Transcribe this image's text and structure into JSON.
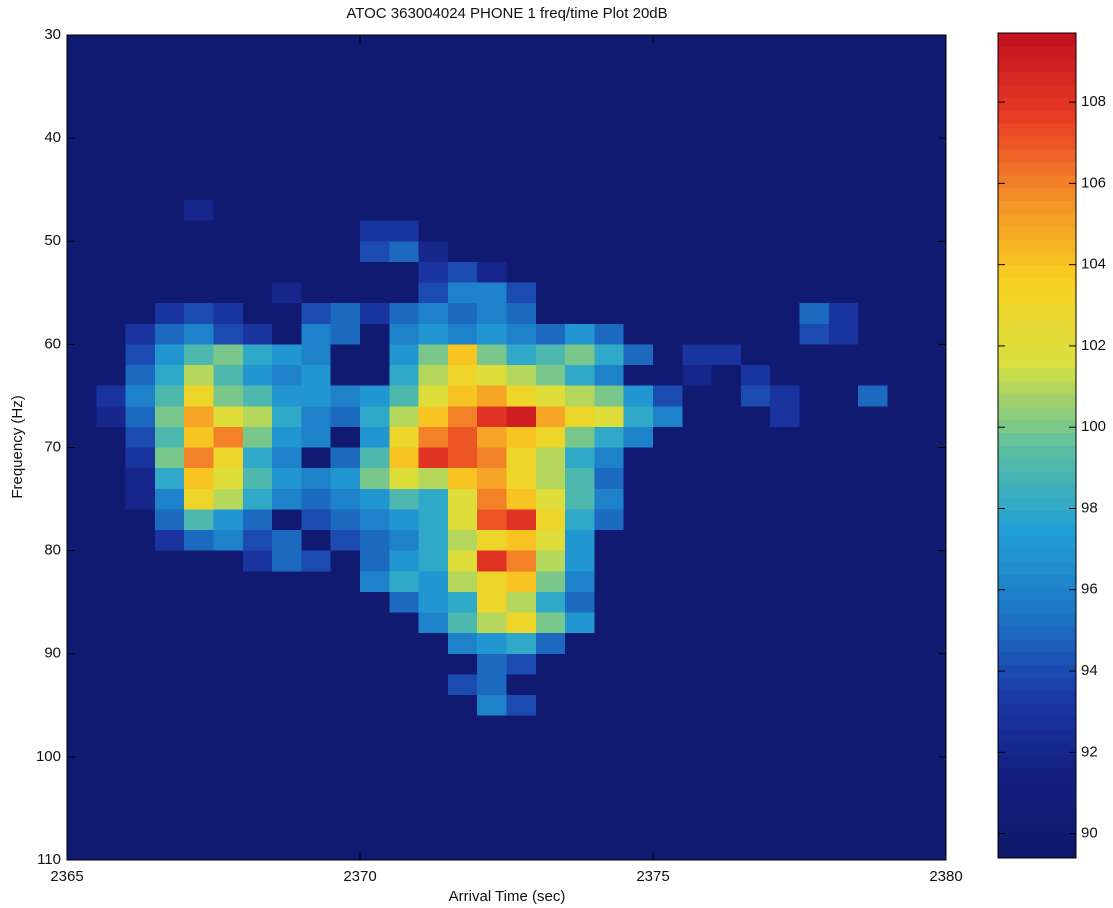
{
  "chart_data": {
    "type": "heatmap",
    "title": "ATOC 363004024  PHONE 1 freq/time Plot 20dB",
    "xlabel": "Arrival Time (sec)",
    "ylabel": "Frequency (Hz)",
    "xlim": [
      2365,
      2380
    ],
    "xticks": [
      2365,
      2370,
      2375,
      2380
    ],
    "ylim": [
      30,
      110
    ],
    "yticks": [
      30,
      40,
      50,
      60,
      70,
      80,
      90,
      100,
      110
    ],
    "y_inverted": true,
    "clim": [
      89.4,
      109.7
    ],
    "cticks": [
      90,
      92,
      94,
      96,
      98,
      100,
      102,
      104,
      106,
      108
    ],
    "colormap": [
      "#10186a",
      "#141e80",
      "#1a3aa8",
      "#1d78c8",
      "#22a0d4",
      "#5ec0a0",
      "#d8e040",
      "#f8d020",
      "#f49028",
      "#e83a24",
      "#c01020"
    ],
    "x": [
      2365.25,
      2365.75,
      2366.25,
      2366.75,
      2367.25,
      2367.75,
      2368.25,
      2368.75,
      2369.25,
      2369.75,
      2370.25,
      2370.75,
      2371.25,
      2371.75,
      2372.25,
      2372.75,
      2373.25,
      2373.75,
      2374.25,
      2374.75,
      2375.25,
      2375.75,
      2376.25,
      2376.75,
      2377.25,
      2377.75,
      2378.25,
      2378.75,
      2379.25,
      2379.75
    ],
    "y": [
      31,
      33,
      35,
      37,
      39,
      41,
      43,
      45,
      47,
      49,
      51,
      53,
      55,
      57,
      59,
      61,
      63,
      65,
      67,
      69,
      71,
      73,
      75,
      77,
      79,
      81,
      83,
      85,
      87,
      89,
      91,
      93,
      95,
      97,
      99,
      101,
      103,
      105,
      107,
      109
    ],
    "z": [
      [
        90,
        90,
        90,
        90,
        90,
        90,
        90,
        90,
        90,
        90,
        90,
        90,
        90,
        90,
        90,
        90,
        90,
        90,
        90,
        90,
        90,
        90,
        90,
        90,
        90,
        90,
        90,
        90,
        90,
        90
      ],
      [
        90,
        90,
        90,
        90,
        90,
        90,
        90,
        90,
        90,
        90,
        90,
        90,
        90,
        90,
        90,
        90,
        90,
        90,
        90,
        90,
        90,
        90,
        90,
        90,
        90,
        90,
        90,
        90,
        90,
        90
      ],
      [
        90,
        90,
        90,
        90,
        90,
        90,
        90,
        90,
        90,
        90,
        90,
        90,
        90,
        90,
        90,
        90,
        90,
        90,
        90,
        90,
        90,
        90,
        90,
        90,
        90,
        90,
        90,
        90,
        90,
        90
      ],
      [
        90,
        90,
        90,
        90,
        90,
        90,
        90,
        90,
        90,
        90,
        90,
        90,
        90,
        90,
        90,
        90,
        90,
        90,
        90,
        90,
        90,
        90,
        90,
        90,
        90,
        90,
        90,
        90,
        90,
        90
      ],
      [
        90,
        90,
        90,
        90,
        90,
        90,
        90,
        90,
        90,
        90,
        90,
        90,
        90,
        90,
        90,
        90,
        90,
        90,
        90,
        90,
        90,
        90,
        90,
        90,
        90,
        90,
        90,
        90,
        90,
        90
      ],
      [
        90,
        90,
        90,
        90,
        90,
        90,
        90,
        90,
        90,
        90,
        90,
        90,
        90,
        90,
        90,
        90,
        90,
        90,
        90,
        90,
        90,
        90,
        90,
        90,
        90,
        90,
        90,
        90,
        90,
        90
      ],
      [
        90,
        90,
        90,
        90,
        90,
        90,
        90,
        90,
        90,
        90,
        90,
        90,
        90,
        90,
        90,
        90,
        90,
        90,
        90,
        90,
        90,
        90,
        90,
        90,
        90,
        90,
        90,
        90,
        90,
        90
      ],
      [
        90,
        90,
        90,
        90,
        90,
        90,
        90,
        90,
        90,
        90,
        90,
        90,
        90,
        90,
        90,
        90,
        90,
        90,
        90,
        90,
        90,
        90,
        90,
        90,
        90,
        90,
        90,
        90,
        90,
        90
      ],
      [
        90,
        90,
        90,
        90,
        92,
        90,
        90,
        90,
        90,
        90,
        90,
        90,
        90,
        90,
        90,
        90,
        90,
        90,
        90,
        90,
        90,
        90,
        90,
        90,
        90,
        90,
        90,
        90,
        90,
        90
      ],
      [
        90,
        90,
        90,
        90,
        90,
        90,
        90,
        90,
        90,
        90,
        93,
        93,
        90,
        90,
        90,
        90,
        90,
        90,
        90,
        90,
        90,
        90,
        90,
        90,
        90,
        90,
        90,
        90,
        90,
        90
      ],
      [
        90,
        90,
        90,
        90,
        90,
        90,
        90,
        90,
        90,
        90,
        94,
        95,
        92,
        90,
        90,
        90,
        90,
        90,
        90,
        90,
        90,
        90,
        90,
        90,
        90,
        90,
        90,
        90,
        90,
        90
      ],
      [
        90,
        90,
        90,
        90,
        90,
        90,
        90,
        90,
        90,
        90,
        90,
        90,
        93,
        94,
        92,
        90,
        90,
        90,
        90,
        90,
        90,
        90,
        90,
        90,
        90,
        90,
        90,
        90,
        90,
        90
      ],
      [
        90,
        90,
        90,
        90,
        90,
        90,
        90,
        92,
        90,
        90,
        90,
        90,
        94,
        96,
        96,
        94,
        90,
        90,
        90,
        90,
        90,
        90,
        90,
        90,
        90,
        90,
        90,
        90,
        90,
        90
      ],
      [
        90,
        90,
        90,
        93,
        94,
        93,
        90,
        90,
        94,
        95,
        93,
        95,
        96,
        95,
        96,
        95,
        90,
        90,
        90,
        90,
        90,
        90,
        90,
        90,
        90,
        95,
        93,
        90,
        90,
        90
      ],
      [
        90,
        90,
        93,
        95,
        96,
        94,
        93,
        90,
        96,
        95,
        90,
        96,
        97,
        96,
        97,
        96,
        95,
        97,
        95,
        90,
        90,
        90,
        90,
        90,
        90,
        94,
        93,
        90,
        90,
        90
      ],
      [
        90,
        90,
        94,
        97,
        99,
        100,
        98,
        97,
        96,
        90,
        90,
        97,
        100,
        104,
        100,
        98,
        99,
        100,
        98,
        95,
        90,
        93,
        93,
        90,
        90,
        90,
        90,
        90,
        90,
        90
      ],
      [
        90,
        90,
        95,
        98,
        101,
        99,
        97,
        96,
        97,
        90,
        90,
        98,
        101,
        103,
        102,
        101,
        100,
        98,
        96,
        90,
        90,
        92,
        90,
        93,
        90,
        90,
        90,
        90,
        90,
        90
      ],
      [
        90,
        93,
        96,
        99,
        103,
        100,
        99,
        97,
        97,
        96,
        97,
        99,
        102,
        104,
        105,
        103,
        102,
        101,
        100,
        97,
        94,
        90,
        90,
        94,
        93,
        90,
        90,
        95,
        90,
        90
      ],
      [
        90,
        92,
        95,
        100,
        105,
        102,
        101,
        98,
        96,
        95,
        98,
        101,
        104,
        106,
        108,
        109,
        105,
        103,
        102,
        98,
        96,
        90,
        90,
        90,
        93,
        90,
        90,
        90,
        90,
        90
      ],
      [
        90,
        90,
        94,
        99,
        104,
        106,
        100,
        97,
        96,
        90,
        97,
        103,
        106,
        107,
        105,
        104,
        103,
        100,
        98,
        96,
        90,
        90,
        90,
        90,
        90,
        90,
        90,
        90,
        90,
        90
      ],
      [
        90,
        90,
        93,
        100,
        106,
        103,
        98,
        96,
        90,
        95,
        99,
        104,
        108,
        107,
        106,
        103,
        101,
        98,
        96,
        90,
        90,
        90,
        90,
        90,
        90,
        90,
        90,
        90,
        90,
        90
      ],
      [
        90,
        90,
        92,
        98,
        104,
        102,
        99,
        97,
        96,
        97,
        100,
        102,
        101,
        104,
        105,
        103,
        101,
        99,
        95,
        90,
        90,
        90,
        90,
        90,
        90,
        90,
        90,
        90,
        90,
        90
      ],
      [
        90,
        90,
        92,
        96,
        103,
        101,
        98,
        96,
        95,
        96,
        97,
        99,
        98,
        102,
        106,
        104,
        102,
        99,
        96,
        90,
        90,
        90,
        90,
        90,
        90,
        90,
        90,
        90,
        90,
        90
      ],
      [
        90,
        90,
        90,
        95,
        99,
        97,
        95,
        90,
        94,
        95,
        96,
        97,
        98,
        102,
        107,
        108,
        103,
        98,
        95,
        90,
        90,
        90,
        90,
        90,
        90,
        90,
        90,
        90,
        90,
        90
      ],
      [
        90,
        90,
        90,
        93,
        95,
        96,
        94,
        95,
        90,
        94,
        95,
        96,
        98,
        101,
        103,
        104,
        102,
        97,
        90,
        90,
        90,
        90,
        90,
        90,
        90,
        90,
        90,
        90,
        90,
        90
      ],
      [
        90,
        90,
        90,
        90,
        90,
        90,
        93,
        95,
        94,
        90,
        95,
        97,
        98,
        102,
        108,
        106,
        101,
        97,
        90,
        90,
        90,
        90,
        90,
        90,
        90,
        90,
        90,
        90,
        90,
        90
      ],
      [
        90,
        90,
        90,
        90,
        90,
        90,
        90,
        90,
        90,
        90,
        96,
        98,
        97,
        101,
        103,
        104,
        100,
        96,
        90,
        90,
        90,
        90,
        90,
        90,
        90,
        90,
        90,
        90,
        90,
        90
      ],
      [
        90,
        90,
        90,
        90,
        90,
        90,
        90,
        90,
        90,
        90,
        90,
        95,
        97,
        98,
        103,
        101,
        98,
        95,
        90,
        90,
        90,
        90,
        90,
        90,
        90,
        90,
        90,
        90,
        90,
        90
      ],
      [
        90,
        90,
        90,
        90,
        90,
        90,
        90,
        90,
        90,
        90,
        90,
        90,
        96,
        99,
        101,
        103,
        100,
        97,
        90,
        90,
        90,
        90,
        90,
        90,
        90,
        90,
        90,
        90,
        90,
        90
      ],
      [
        90,
        90,
        90,
        90,
        90,
        90,
        90,
        90,
        90,
        90,
        90,
        90,
        90,
        96,
        97,
        98,
        95,
        90,
        90,
        90,
        90,
        90,
        90,
        90,
        90,
        90,
        90,
        90,
        90,
        90
      ],
      [
        90,
        90,
        90,
        90,
        90,
        90,
        90,
        90,
        90,
        90,
        90,
        90,
        90,
        90,
        95,
        94,
        90,
        90,
        90,
        90,
        90,
        90,
        90,
        90,
        90,
        90,
        90,
        90,
        90,
        90
      ],
      [
        90,
        90,
        90,
        90,
        90,
        90,
        90,
        90,
        90,
        90,
        90,
        90,
        90,
        94,
        95,
        90,
        90,
        90,
        90,
        90,
        90,
        90,
        90,
        90,
        90,
        90,
        90,
        90,
        90,
        90
      ],
      [
        90,
        90,
        90,
        90,
        90,
        90,
        90,
        90,
        90,
        90,
        90,
        90,
        90,
        90,
        96,
        94,
        90,
        90,
        90,
        90,
        90,
        90,
        90,
        90,
        90,
        90,
        90,
        90,
        90,
        90
      ],
      [
        90,
        90,
        90,
        90,
        90,
        90,
        90,
        90,
        90,
        90,
        90,
        90,
        90,
        90,
        90,
        90,
        90,
        90,
        90,
        90,
        90,
        90,
        90,
        90,
        90,
        90,
        90,
        90,
        90,
        90
      ],
      [
        90,
        90,
        90,
        90,
        90,
        90,
        90,
        90,
        90,
        90,
        90,
        90,
        90,
        90,
        90,
        90,
        90,
        90,
        90,
        90,
        90,
        90,
        90,
        90,
        90,
        90,
        90,
        90,
        90,
        90
      ],
      [
        90,
        90,
        90,
        90,
        90,
        90,
        90,
        90,
        90,
        90,
        90,
        90,
        90,
        90,
        90,
        90,
        90,
        90,
        90,
        90,
        90,
        90,
        90,
        90,
        90,
        90,
        90,
        90,
        90,
        90
      ],
      [
        90,
        90,
        90,
        90,
        90,
        90,
        90,
        90,
        90,
        90,
        90,
        90,
        90,
        90,
        90,
        90,
        90,
        90,
        90,
        90,
        90,
        90,
        90,
        90,
        90,
        90,
        90,
        90,
        90,
        90
      ],
      [
        90,
        90,
        90,
        90,
        90,
        90,
        90,
        90,
        90,
        90,
        90,
        90,
        90,
        90,
        90,
        90,
        90,
        90,
        90,
        90,
        90,
        90,
        90,
        90,
        90,
        90,
        90,
        90,
        90,
        90
      ],
      [
        90,
        90,
        90,
        90,
        90,
        90,
        90,
        90,
        90,
        90,
        90,
        90,
        90,
        90,
        90,
        90,
        90,
        90,
        90,
        90,
        90,
        90,
        90,
        90,
        90,
        90,
        90,
        90,
        90,
        90
      ],
      [
        90,
        90,
        90,
        90,
        90,
        90,
        90,
        90,
        90,
        90,
        90,
        90,
        90,
        90,
        90,
        90,
        90,
        90,
        90,
        90,
        90,
        90,
        90,
        90,
        90,
        90,
        90,
        90,
        90,
        90
      ]
    ]
  }
}
